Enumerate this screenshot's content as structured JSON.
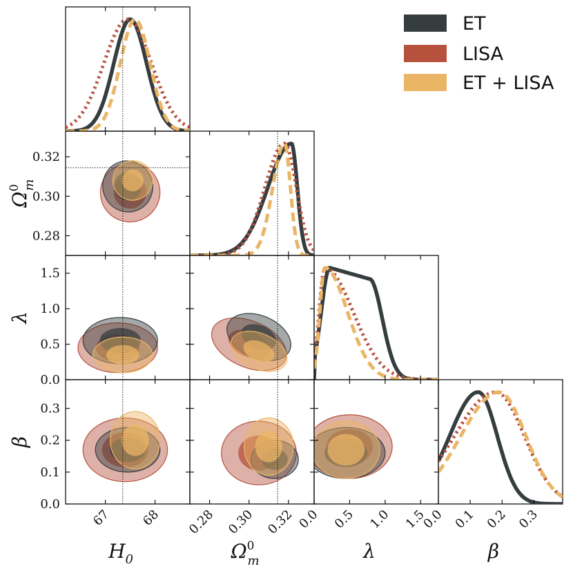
{
  "chart_data": {
    "type": "corner",
    "parameters": [
      {
        "key": "H0",
        "label": "H",
        "sub": "0",
        "sup": "",
        "range": [
          66.2,
          68.7
        ],
        "ticks": [
          67,
          68
        ],
        "tick_labels": [
          "67",
          "68"
        ],
        "truth": 67.35
      },
      {
        "key": "Om",
        "label": "Ω",
        "sub": "m",
        "sup": "0",
        "range": [
          0.27,
          0.333
        ],
        "ticks": [
          0.28,
          0.3,
          0.32
        ],
        "tick_labels": [
          "0.28",
          "0.30",
          "0.32"
        ],
        "truth": 0.3145
      },
      {
        "key": "lambda",
        "label": "λ",
        "sub": "",
        "sup": "",
        "range": [
          0.0,
          1.75
        ],
        "ticks": [
          0.0,
          0.5,
          1.0,
          1.5
        ],
        "tick_labels": [
          "0.0",
          "0.5",
          "1.0",
          "1.5"
        ],
        "truth": null
      },
      {
        "key": "beta",
        "label": "β",
        "sub": "",
        "sup": "",
        "range": [
          0.0,
          0.39
        ],
        "ticks": [
          0.0,
          0.1,
          0.2,
          0.3
        ],
        "tick_labels": [
          "0.0",
          "0.1",
          "0.2",
          "0.3"
        ],
        "truth": null
      }
    ],
    "y_tick_labels": {
      "Om": [
        "0.28",
        "0.30",
        "0.32"
      ],
      "lambda": [
        "0.0",
        "0.5",
        "1.0",
        "1.5"
      ],
      "beta": [
        "0.0",
        "0.1",
        "0.2",
        "0.3"
      ]
    },
    "series": [
      {
        "name": "ET",
        "color": "#363d3f",
        "line": "solid",
        "marginals": {
          "H0": {
            "mean": 67.5,
            "sd": 0.33
          },
          "Om": {
            "peak": 0.3215,
            "sd_left": 0.012,
            "sd_right": 0.003
          },
          "lambda": {
            "plateau": [
              0.22,
              0.78
            ],
            "peak": 1.0,
            "plateau_level": 0.9
          },
          "beta": {
            "peak": 0.125,
            "sd_left": 0.09,
            "sd_right": 0.06
          }
        },
        "contours": {
          "Om_H0": {
            "center": [
              67.45,
              0.305
            ],
            "width": [
              1.0,
              0.026
            ],
            "tilt": 0.8
          },
          "lambda_H0": {
            "center": [
              67.3,
              0.55
            ],
            "width": [
              1.5,
              0.65
            ]
          },
          "lambda_Om": {
            "center": [
              0.305,
              0.6
            ],
            "width": [
              0.034,
              0.6
            ],
            "tilt": -0.8
          },
          "beta_H0": {
            "center": [
              67.45,
              0.17
            ],
            "width": [
              1.3,
              0.14
            ]
          },
          "beta_Om": {
            "center": [
              0.313,
              0.14
            ],
            "width": [
              0.024,
              0.12
            ]
          },
          "beta_lambda": {
            "center": [
              0.45,
              0.16
            ],
            "width": [
              1.1,
              0.16
            ]
          }
        }
      },
      {
        "name": "LISA",
        "color": "#b5513d",
        "line": "dotted",
        "marginals": {
          "H0": {
            "mean": 67.45,
            "sd": 0.48
          },
          "Om": {
            "peak": 0.318,
            "sd_left": 0.01,
            "sd_right": 0.006
          },
          "lambda": {
            "peak": 0.15,
            "sd_left": 0.08,
            "sd_right": 0.4
          },
          "beta": {
            "peak": 0.18,
            "sd_left": 0.13,
            "sd_right": 0.09
          }
        },
        "contours": {
          "Om_H0": {
            "center": [
              67.5,
              0.302
            ],
            "width": [
              1.2,
              0.03
            ],
            "tilt": 0.8
          },
          "lambda_H0": {
            "center": [
              67.25,
              0.45
            ],
            "width": [
              1.6,
              0.7
            ]
          },
          "lambda_Om": {
            "center": [
              0.3,
              0.5
            ],
            "width": [
              0.04,
              0.65
            ],
            "tilt": -0.8
          },
          "beta_H0": {
            "center": [
              67.4,
              0.17
            ],
            "width": [
              1.7,
              0.2
            ]
          },
          "beta_Om": {
            "center": [
              0.305,
              0.16
            ],
            "width": [
              0.038,
              0.2
            ]
          },
          "beta_lambda": {
            "center": [
              0.5,
              0.18
            ],
            "width": [
              1.2,
              0.2
            ]
          }
        }
      },
      {
        "name": "ET + LISA",
        "color": "#ebb566",
        "line": "dashed",
        "marginals": {
          "H0": {
            "mean": 67.6,
            "sd": 0.3
          },
          "Om": {
            "peak": 0.318,
            "sd_left": 0.006,
            "sd_right": 0.003
          },
          "lambda": {
            "peak": 0.15,
            "sd_left": 0.07,
            "sd_right": 0.32
          },
          "beta": {
            "peak": 0.19,
            "sd_left": 0.12,
            "sd_right": 0.085
          }
        },
        "contours": {
          "Om_H0": {
            "center": [
              67.55,
              0.308
            ],
            "width": [
              0.8,
              0.02
            ],
            "tilt": 0.8
          },
          "lambda_H0": {
            "center": [
              67.35,
              0.35
            ],
            "width": [
              1.2,
              0.5
            ]
          },
          "lambda_Om": {
            "center": [
              0.305,
              0.4
            ],
            "width": [
              0.03,
              0.5
            ],
            "tilt": -0.8
          },
          "beta_H0": {
            "center": [
              67.6,
              0.2
            ],
            "width": [
              1.0,
              0.18
            ]
          },
          "beta_Om": {
            "center": [
              0.31,
              0.18
            ],
            "width": [
              0.025,
              0.18
            ]
          },
          "beta_lambda": {
            "center": [
              0.45,
              0.17
            ],
            "width": [
              0.95,
              0.18
            ]
          }
        }
      }
    ],
    "legend": {
      "position": "top-right",
      "entries": [
        "ET",
        "LISA",
        "ET + LISA"
      ]
    }
  }
}
